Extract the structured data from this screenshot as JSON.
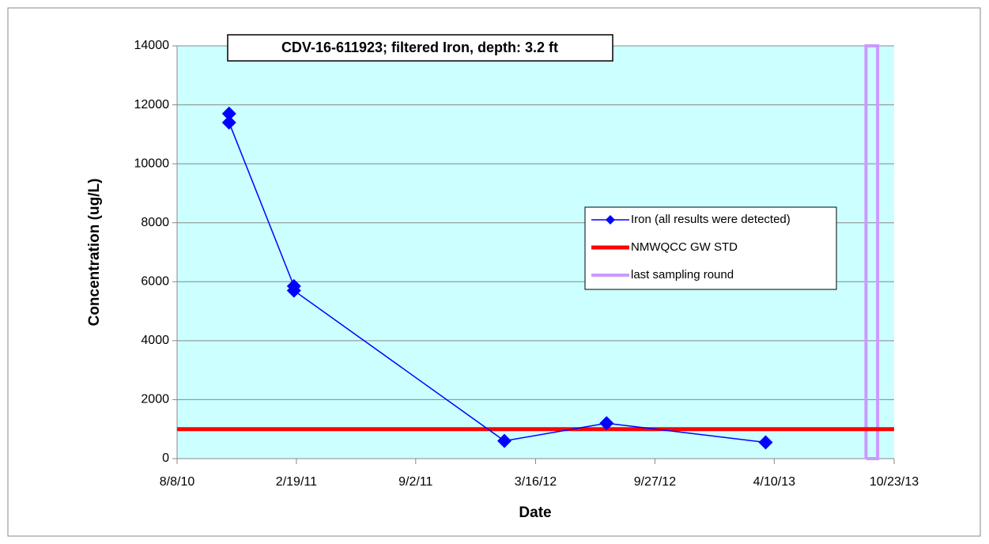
{
  "chart_data": {
    "type": "line",
    "title": "CDV-16-611923;  filtered Iron, depth: 3.2 ft",
    "x_label": "Date",
    "y_label": "Concentration (ug/L)",
    "xlim": [
      "2010-08-08",
      "2013-10-23"
    ],
    "xticks": [
      {
        "value": "2010-08-08",
        "label": "8/8/10"
      },
      {
        "value": "2011-02-19",
        "label": "2/19/11"
      },
      {
        "value": "2011-09-02",
        "label": "9/2/11"
      },
      {
        "value": "2012-03-16",
        "label": "3/16/12"
      },
      {
        "value": "2012-09-27",
        "label": "9/27/12"
      },
      {
        "value": "2013-04-10",
        "label": "4/10/13"
      },
      {
        "value": "2013-10-23",
        "label": "10/23/13"
      }
    ],
    "ylim": [
      0,
      14000
    ],
    "yticks": [
      0,
      2000,
      4000,
      6000,
      8000,
      10000,
      12000,
      14000
    ],
    "grid": true,
    "background": "#ccffff",
    "series": [
      {
        "name": "Iron (all results were detected)",
        "color": "#0000ff",
        "marker": "diamond",
        "x": [
          "2010-11-01",
          "2010-11-01",
          "2011-02-15",
          "2011-02-15",
          "2012-01-25",
          "2012-07-10",
          "2013-03-27"
        ],
        "values": [
          11700,
          11400,
          5850,
          5700,
          600,
          1200,
          550
        ]
      },
      {
        "name": "NMWQCC GW STD",
        "color": "#ff0000",
        "width": 5,
        "x": [
          "2010-08-08",
          "2013-10-23"
        ],
        "values": [
          1000,
          1000
        ]
      },
      {
        "name": "last sampling round",
        "color": "#cc99ff",
        "width": 4,
        "x": [
          "2013-09-07",
          "2013-09-07",
          "2013-09-26",
          "2013-09-26",
          "2013-09-07"
        ],
        "values": [
          0,
          14000,
          14000,
          0,
          0
        ]
      }
    ]
  }
}
